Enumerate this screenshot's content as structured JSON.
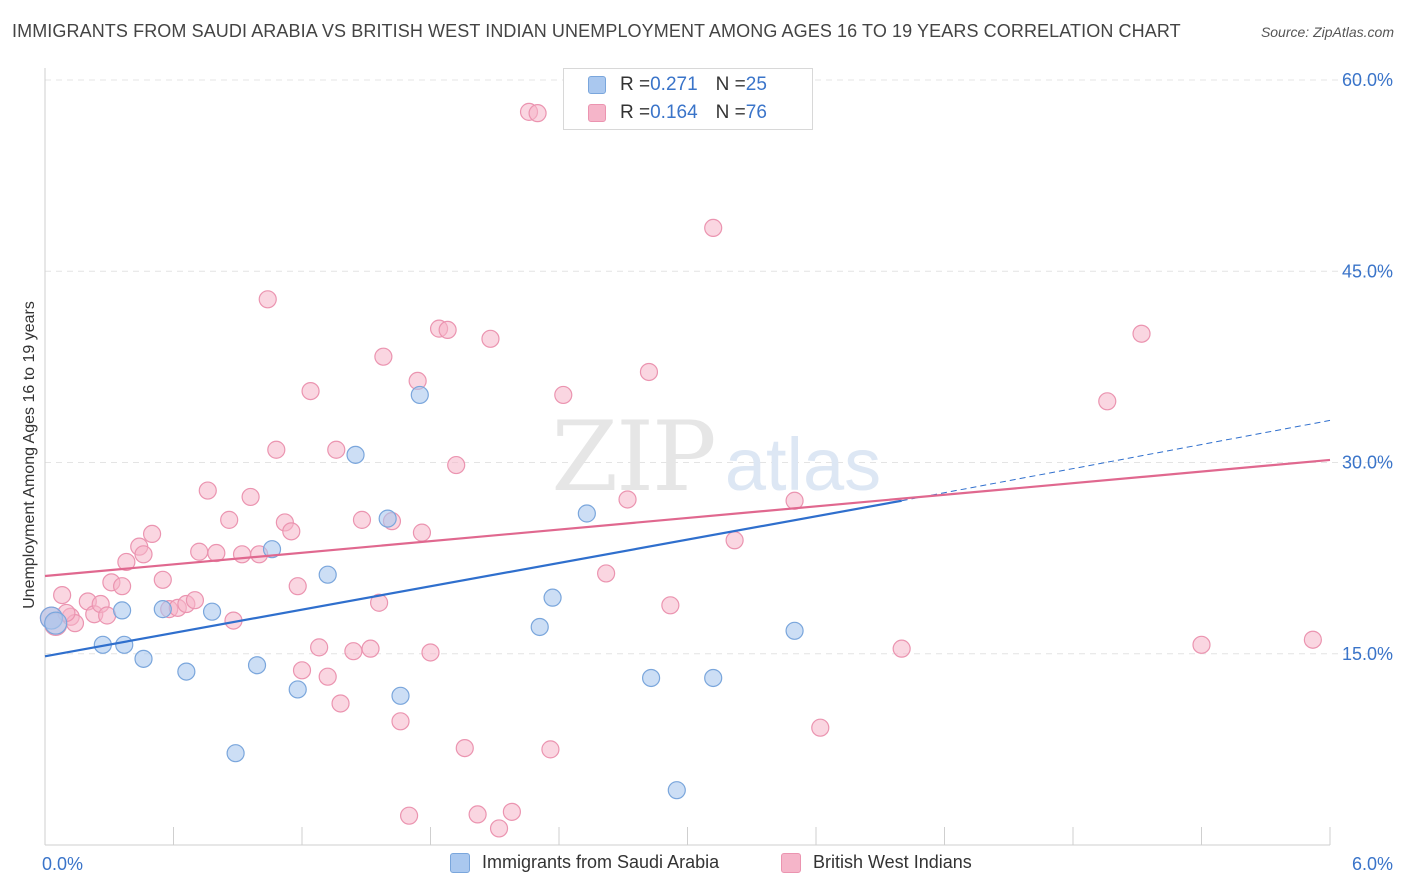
{
  "header": {
    "title": "IMMIGRANTS FROM SAUDI ARABIA VS BRITISH WEST INDIAN UNEMPLOYMENT AMONG AGES 16 TO 19 YEARS CORRELATION CHART",
    "source": "Source: ZipAtlas.com"
  },
  "watermark": {
    "zip": "ZIP",
    "atlas": "atlas"
  },
  "legend_top": {
    "rows": [
      {
        "r_label": "R = ",
        "r_value": "0.271",
        "n_label": "N = ",
        "n_value": "25",
        "color": "#aac8ef"
      },
      {
        "r_label": "R = ",
        "r_value": "0.164",
        "n_label": "N = ",
        "n_value": "76",
        "color": "#f5b5c9"
      }
    ]
  },
  "legend_bottom": {
    "items": [
      {
        "label": "Immigrants from Saudi Arabia",
        "color": "#aac8ef"
      },
      {
        "label": "British West Indians",
        "color": "#f5b5c9"
      }
    ]
  },
  "chart_data": {
    "type": "scatter",
    "title": "IMMIGRANTS FROM SAUDI ARABIA VS BRITISH WEST INDIAN UNEMPLOYMENT AMONG AGES 16 TO 19 YEARS CORRELATION CHART",
    "xlabel": "",
    "ylabel": "Unemployment Among Ages 16 to 19 years",
    "xlim": [
      0,
      6
    ],
    "ylim": [
      0,
      60
    ],
    "x_tick_labels": [
      {
        "value": 0,
        "label": "0.0%"
      },
      {
        "value": 6,
        "label": "6.0%"
      }
    ],
    "y_tick_labels": [
      {
        "value": 15,
        "label": "15.0%"
      },
      {
        "value": 30,
        "label": "30.0%"
      },
      {
        "value": 45,
        "label": "45.0%"
      },
      {
        "value": 60,
        "label": "60.0%"
      }
    ],
    "grid": true,
    "legend_position": "bottom",
    "colors": {
      "saudi_fill": "#aac8ef",
      "saudi_stroke": "#7aa6dc",
      "saudi_line": "#2f6fcd",
      "bwi_fill": "#f5b5c9",
      "bwi_stroke": "#eb94b0",
      "bwi_line": "#e0688f",
      "axis_text": "#3a74c9"
    },
    "series": [
      {
        "name": "Immigrants from Saudi Arabia",
        "r": 0.271,
        "n": 25,
        "trend": {
          "x0": 0,
          "y0": 14.8,
          "x1": 4.0,
          "y1": 27.0,
          "dash_to_x": 6.0,
          "dash_to_y": 33.3
        },
        "points": [
          [
            0.03,
            17.8
          ],
          [
            0.05,
            17.4
          ],
          [
            0.27,
            15.7
          ],
          [
            0.37,
            15.7
          ],
          [
            0.36,
            18.4
          ],
          [
            0.46,
            14.6
          ],
          [
            0.55,
            18.5
          ],
          [
            0.66,
            13.6
          ],
          [
            0.78,
            18.3
          ],
          [
            0.89,
            7.2
          ],
          [
            0.99,
            14.1
          ],
          [
            1.06,
            23.2
          ],
          [
            1.18,
            12.2
          ],
          [
            1.32,
            21.2
          ],
          [
            1.45,
            30.6
          ],
          [
            1.6,
            25.6
          ],
          [
            1.66,
            11.7
          ],
          [
            1.75,
            35.3
          ],
          [
            2.31,
            17.1
          ],
          [
            2.37,
            19.4
          ],
          [
            2.53,
            26.0
          ],
          [
            2.83,
            13.1
          ],
          [
            2.95,
            4.3
          ],
          [
            3.12,
            13.1
          ],
          [
            3.5,
            16.8
          ]
        ]
      },
      {
        "name": "British West Indians",
        "r": 0.164,
        "n": 76,
        "trend": {
          "x0": 0,
          "y0": 21.1,
          "x1": 6.0,
          "y1": 30.2
        },
        "points": [
          [
            0.03,
            17.8
          ],
          [
            0.05,
            17.3
          ],
          [
            0.08,
            19.6
          ],
          [
            0.12,
            17.9
          ],
          [
            0.14,
            17.4
          ],
          [
            0.2,
            19.1
          ],
          [
            0.23,
            18.1
          ],
          [
            0.26,
            18.9
          ],
          [
            0.29,
            18.0
          ],
          [
            0.31,
            20.6
          ],
          [
            0.36,
            20.3
          ],
          [
            0.38,
            22.2
          ],
          [
            0.44,
            23.4
          ],
          [
            0.46,
            22.8
          ],
          [
            0.5,
            24.4
          ],
          [
            0.55,
            20.8
          ],
          [
            0.58,
            18.5
          ],
          [
            0.62,
            18.6
          ],
          [
            0.66,
            18.9
          ],
          [
            0.7,
            19.2
          ],
          [
            0.72,
            23.0
          ],
          [
            0.76,
            27.8
          ],
          [
            0.8,
            22.9
          ],
          [
            0.86,
            25.5
          ],
          [
            0.88,
            17.6
          ],
          [
            0.92,
            22.8
          ],
          [
            0.96,
            27.3
          ],
          [
            1.0,
            22.8
          ],
          [
            1.04,
            42.8
          ],
          [
            1.08,
            31.0
          ],
          [
            1.12,
            25.3
          ],
          [
            1.15,
            24.6
          ],
          [
            1.18,
            20.3
          ],
          [
            1.2,
            13.7
          ],
          [
            1.24,
            35.6
          ],
          [
            1.28,
            15.5
          ],
          [
            1.32,
            13.2
          ],
          [
            1.36,
            31.0
          ],
          [
            1.38,
            11.1
          ],
          [
            1.44,
            15.2
          ],
          [
            1.48,
            25.5
          ],
          [
            1.52,
            15.4
          ],
          [
            1.56,
            19.0
          ],
          [
            1.58,
            38.3
          ],
          [
            1.62,
            25.4
          ],
          [
            1.66,
            9.7
          ],
          [
            1.7,
            2.3
          ],
          [
            1.74,
            36.4
          ],
          [
            1.76,
            24.5
          ],
          [
            1.8,
            15.1
          ],
          [
            1.84,
            40.5
          ],
          [
            1.88,
            40.4
          ],
          [
            1.92,
            29.8
          ],
          [
            1.96,
            7.6
          ],
          [
            2.02,
            2.4
          ],
          [
            2.08,
            39.7
          ],
          [
            2.12,
            1.3
          ],
          [
            2.18,
            2.6
          ],
          [
            2.26,
            57.5
          ],
          [
            2.3,
            57.4
          ],
          [
            2.36,
            7.5
          ],
          [
            2.42,
            35.3
          ],
          [
            2.62,
            21.3
          ],
          [
            2.72,
            27.1
          ],
          [
            2.82,
            37.1
          ],
          [
            2.92,
            18.8
          ],
          [
            3.12,
            48.4
          ],
          [
            3.22,
            23.9
          ],
          [
            3.5,
            27.0
          ],
          [
            3.62,
            9.2
          ],
          [
            4.0,
            15.4
          ],
          [
            4.96,
            34.8
          ],
          [
            5.12,
            40.1
          ],
          [
            5.4,
            15.7
          ],
          [
            5.92,
            16.1
          ],
          [
            0.1,
            18.2
          ]
        ]
      }
    ]
  }
}
